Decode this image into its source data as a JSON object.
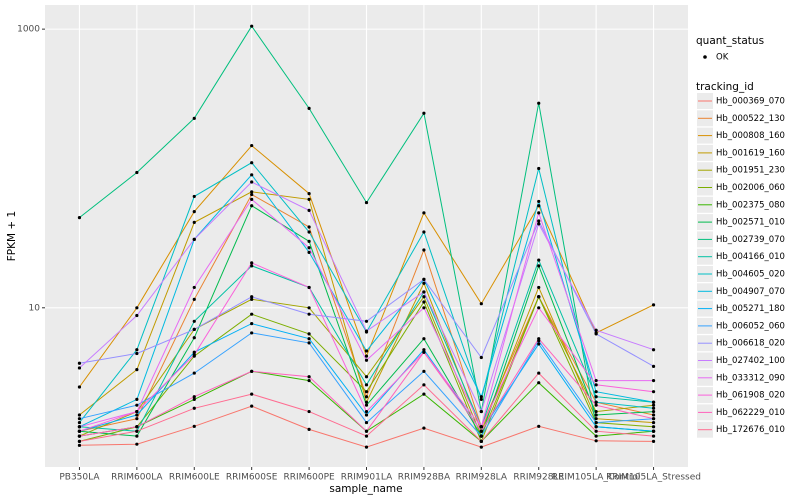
{
  "chart_data": {
    "type": "line",
    "x_label": "sample_name",
    "y_label": "FPKM + 1",
    "categories": [
      "PB350LA",
      "RRIM600LA",
      "RRIM600LE",
      "RRIM600SE",
      "RRIM600PE",
      "RRIM901LA",
      "RRIM928BA",
      "RRIM928LA",
      "RRIM928LE",
      "RRIM105LA_Control",
      "RRIM105LA_Stressed"
    ],
    "ylim": [
      0.72,
      1490
    ],
    "yticks": [
      10,
      1000
    ],
    "log_y": true,
    "grid": true,
    "point_legend_title": "quant_status",
    "point_legend_label": "OK",
    "point_color": "#000000",
    "legend_title": "tracking_id",
    "legend_position": "right",
    "series": [
      {
        "name": "Hb_000369_070",
        "color": "#F8766D",
        "values": [
          1.03,
          1.05,
          1.41,
          1.97,
          1.34,
          1.0,
          1.37,
          1.0,
          1.41,
          1.11,
          1.1
        ]
      },
      {
        "name": "Hb_000522_130",
        "color": "#EA8331",
        "values": [
          1.3,
          1.6,
          11.5,
          65,
          38,
          2.3,
          26,
          1.4,
          12,
          2.1,
          1.7
        ]
      },
      {
        "name": "Hb_000808_160",
        "color": "#D89000",
        "values": [
          2.7,
          10,
          49,
          146,
          66,
          4.5,
          48,
          10.7,
          54,
          6.6,
          10.5
        ]
      },
      {
        "name": "Hb_001619_160",
        "color": "#C09B00",
        "values": [
          1.7,
          3.6,
          41,
          68,
          60,
          2.1,
          15,
          1.3,
          14,
          1.6,
          1.5
        ]
      },
      {
        "name": "Hb_001951_230",
        "color": "#A3A500",
        "values": [
          1.2,
          1.8,
          7,
          11.5,
          10,
          3.2,
          12,
          1.2,
          12,
          1.8,
          2
        ]
      },
      {
        "name": "Hb_002006_060",
        "color": "#7CAE00",
        "values": [
          1.1,
          1.4,
          4.5,
          9,
          6.5,
          2.5,
          11,
          1.1,
          12,
          1.5,
          1.4
        ]
      },
      {
        "name": "Hb_002375_080",
        "color": "#39B600",
        "values": [
          1.2,
          1.4,
          2.2,
          3.5,
          3,
          1.3,
          2.4,
          1.1,
          2.9,
          1.2,
          1.3
        ]
      },
      {
        "name": "Hb_002571_010",
        "color": "#00BB4E",
        "values": [
          1.3,
          1.2,
          6.1,
          54,
          30,
          2,
          6,
          1.2,
          20,
          1.7,
          1.8
        ]
      },
      {
        "name": "Hb_002739_070",
        "color": "#00BF7D",
        "values": [
          44.4,
          93.5,
          229,
          1050,
          270,
          56.9,
          249,
          1.8,
          294,
          1.4,
          1.3
        ]
      },
      {
        "name": "Hb_004166_010",
        "color": "#00C1A3",
        "values": [
          1.4,
          1.3,
          8,
          20,
          14,
          2.8,
          13,
          1.4,
          22,
          2.3,
          2.1
        ]
      },
      {
        "name": "Hb_004605_020",
        "color": "#00BFC4",
        "values": [
          1.5,
          5,
          63,
          110,
          35,
          6.7,
          35,
          2.2,
          100,
          2.1,
          1.9
        ]
      },
      {
        "name": "Hb_004907_070",
        "color": "#00BAE0",
        "values": [
          1.4,
          2.2,
          31,
          90,
          25,
          4.9,
          16,
          2.3,
          58,
          2.5,
          2.1
        ]
      },
      {
        "name": "Hb_005271_180",
        "color": "#00B0F6",
        "values": [
          1.3,
          1.7,
          4.8,
          7.7,
          6,
          1.7,
          5,
          1.3,
          5.5,
          1.4,
          1.3
        ]
      },
      {
        "name": "Hb_006052_060",
        "color": "#35A2FF",
        "values": [
          1.6,
          2,
          3.4,
          6.6,
          5.6,
          1.5,
          3.5,
          1.2,
          5.8,
          1.5,
          1.6
        ]
      },
      {
        "name": "Hb_006618_020",
        "color": "#9590FF",
        "values": [
          4,
          4.7,
          7,
          12,
          9,
          8,
          16,
          4.4,
          42,
          6.5,
          3.8
        ]
      },
      {
        "name": "Hb_027402_100",
        "color": "#C77CFF",
        "values": [
          3.7,
          8.8,
          31,
          80,
          50,
          6.8,
          13,
          1.8,
          40,
          6.9,
          5
        ]
      },
      {
        "name": "Hb_033312_090",
        "color": "#E76BF3",
        "values": [
          1.4,
          1.8,
          14,
          60,
          27,
          4.2,
          10,
          1.4,
          48,
          3,
          3
        ]
      },
      {
        "name": "Hb_061908_020",
        "color": "#FA62DB",
        "values": [
          1.3,
          1.8,
          4.6,
          21,
          14,
          1.8,
          4.8,
          1.4,
          10,
          2.8,
          2.5
        ]
      },
      {
        "name": "Hb_062229_010",
        "color": "#FF62BC",
        "values": [
          1.2,
          1.4,
          2.3,
          3.5,
          3.2,
          1.3,
          4.8,
          1.3,
          6,
          2,
          1.6
        ]
      },
      {
        "name": "Hb_172676_010",
        "color": "#FF6C91",
        "values": [
          1.1,
          1.3,
          1.9,
          2.4,
          1.8,
          1.2,
          2.8,
          1.1,
          3.4,
          1.3,
          1.2
        ]
      }
    ]
  }
}
